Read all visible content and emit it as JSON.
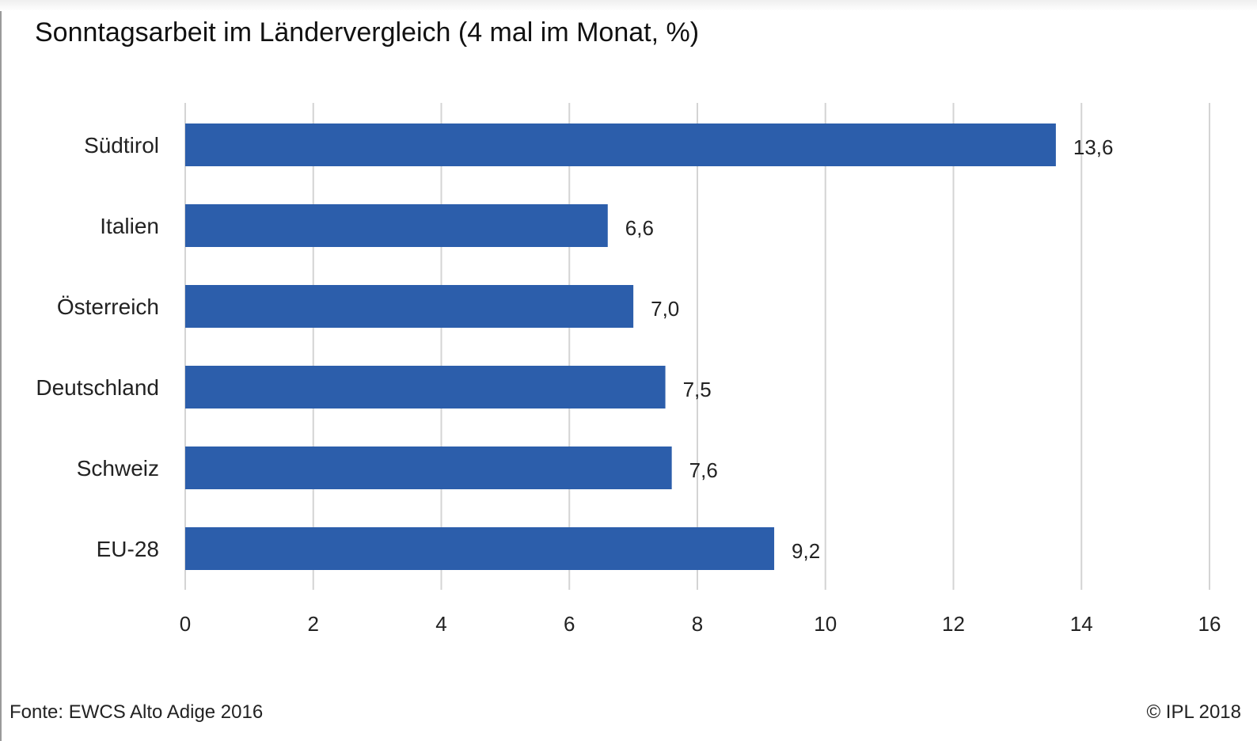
{
  "chart_data": {
    "type": "bar",
    "orientation": "horizontal",
    "title": "Sonntagsarbeit im Ländervergleich (4 mal im Monat, %)",
    "categories": [
      "Südtirol",
      "Italien",
      "Österreich",
      "Deutschland",
      "Schweiz",
      "EU-28"
    ],
    "values": [
      13.6,
      6.6,
      7.0,
      7.5,
      7.6,
      9.2
    ],
    "value_labels": [
      "13,6",
      "6,6",
      "7,0",
      "7,5",
      "7,6",
      "9,2"
    ],
    "xlim": [
      0,
      16
    ],
    "xticks": [
      0,
      2,
      4,
      6,
      8,
      10,
      12,
      14,
      16
    ],
    "xtick_labels": [
      "0",
      "2",
      "4",
      "6",
      "8",
      "10",
      "12",
      "14",
      "16"
    ],
    "grid": "vertical",
    "bar_color": "#2c5eab",
    "grid_color": "#d4d4d4"
  },
  "footer": {
    "source": "Fonte: EWCS Alto Adige 2016",
    "copyright": "© IPL 2018"
  }
}
